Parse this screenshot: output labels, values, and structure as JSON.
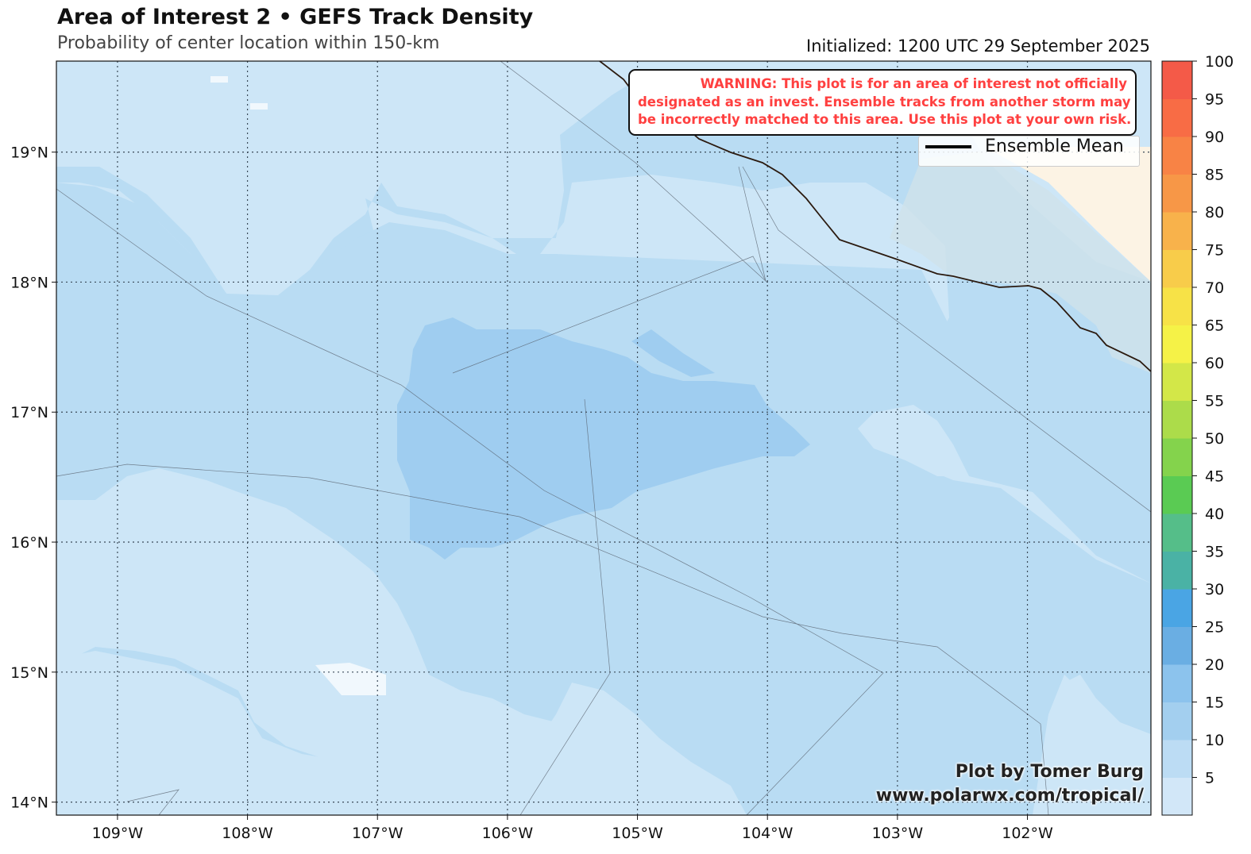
{
  "header": {
    "title": "Area of Interest 2 • GEFS Track Density",
    "subtitle": "Probability of center location within 150-km",
    "initialized": "Initialized: 1200 UTC 29 September 2025"
  },
  "warning": {
    "lines": [
      "WARNING: This plot is for an area of interest not officially",
      "designated as an invest. Ensemble tracks from another storm may",
      "be incorrectly matched to this area. Use this plot at your own risk."
    ],
    "color": "#ff4040"
  },
  "legend": {
    "label": "Ensemble Mean"
  },
  "credit": {
    "line1": "Plot by Tomer Burg",
    "line2": "www.polarwx.com/tropical/"
  },
  "map": {
    "lon_range": [
      -109.47,
      -101.05
    ],
    "lat_range": [
      13.9,
      19.7
    ],
    "lon_labels": [
      "109°W",
      "108°W",
      "107°W",
      "106°W",
      "105°W",
      "104°W",
      "103°W",
      "102°W"
    ],
    "lon_values": [
      -109,
      -108,
      -107,
      -106,
      -105,
      -104,
      -103,
      -102
    ],
    "lat_labels": [
      "14°N",
      "15°N",
      "16°N",
      "17°N",
      "18°N",
      "19°N"
    ],
    "lat_values": [
      14,
      15,
      16,
      17,
      18,
      19
    ],
    "colors": {
      "background_level": "#cde6f7",
      "level_5_10": "#b9dcf3",
      "level_10_15": "#9fcdf0",
      "high": "#f1f8fd",
      "land": "#fcf3e4",
      "coast": "#2b1a0f"
    },
    "ensemble_mean": []
  },
  "colorbar": {
    "levels": [
      0,
      5,
      10,
      15,
      20,
      25,
      30,
      35,
      40,
      45,
      50,
      55,
      60,
      65,
      70,
      75,
      80,
      85,
      90,
      95,
      100
    ],
    "labels": [
      "5",
      "10",
      "15",
      "20",
      "25",
      "30",
      "35",
      "40",
      "45",
      "50",
      "55",
      "60",
      "65",
      "70",
      "75",
      "80",
      "85",
      "90",
      "95",
      "100"
    ],
    "colors": [
      "#d2e7f8",
      "#bcdcf4",
      "#a3cfef",
      "#8cc3ed",
      "#6aaee3",
      "#4aa5e4",
      "#4ab2a5",
      "#55be89",
      "#5acb53",
      "#84d34c",
      "#acdc4a",
      "#d3e748",
      "#f5f247",
      "#f7e247",
      "#f8cc4a",
      "#f8b24b",
      "#f79747",
      "#f88345",
      "#f86c45",
      "#f45a48",
      "#f24a4a"
    ]
  }
}
